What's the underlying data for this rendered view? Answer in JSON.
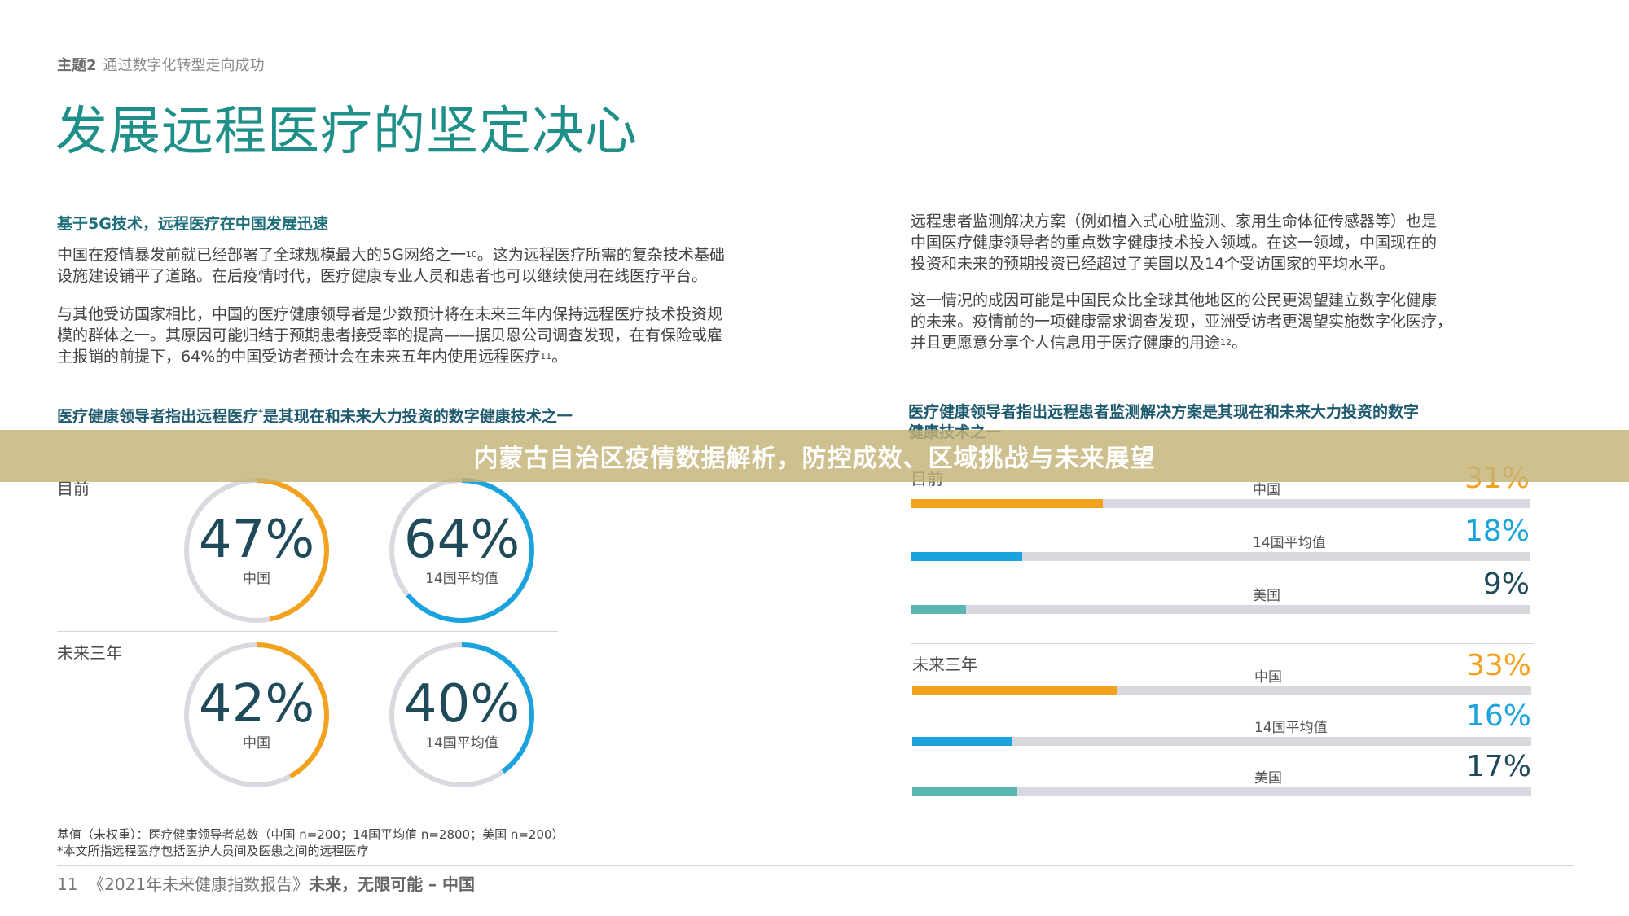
{
  "header": {
    "topic_label": "主题2",
    "topic_text": "通过数字化转型走向成功",
    "title": "发展远程医疗的坚定决心"
  },
  "left_text": {
    "heading": "基于5G技术，远程医疗在中国发展迅速",
    "p1_line1": "中国在疫情暴发前就已经部署了全球规模最大的5G网络之一",
    "p1_ref": "10",
    "p1_line1b": "。这为远程医疗所需的复杂技术基础",
    "p1_line2": "设施建设铺平了道路。在后疫情时代，医疗健康专业人员和患者也可以继续使用在线医疗平台。",
    "p2_line1": "与其他受访国家相比，中国的医疗健康领导者是少数预计将在未来三年内保持远程医疗技术投资规",
    "p2_line2": "模的群体之一。其原因可能归结于预期患者接受率的提高——据贝恩公司调查发现，在有保险或雇",
    "p2_line3": "主报销的前提下，64%的中国受访者预计会在未来五年内使用远程医疗",
    "p2_ref": "11",
    "p2_end": "。"
  },
  "right_text": {
    "p1_line1": "远程患者监测解决方案（例如植入式心脏监测、家用生命体征传感器等）也是",
    "p1_line2": "中国医疗健康领导者的重点数字健康技术投入领域。在这一领域，中国现在的",
    "p1_line3": "投资和未来的预期投资已经超过了美国以及14个受访国家的平均水平。",
    "p2_line1": "这一情况的成因可能是中国民众比全球其他地区的公民更渴望建立数字化健康",
    "p2_line2": "的未来。疫情前的一项健康需求调查发现，亚洲受访者更渴望实施数字化医疗，",
    "p2_line3": "并且更愿意分享个人信息用于医疗健康的用途",
    "p2_ref": "12",
    "p2_end": "。"
  },
  "left_chart": {
    "heading": "医疗健康领导者指出远程医疗",
    "heading_mark": "*",
    "heading_rest": "是其现在和未来大力投资的数字健康技术之一",
    "row_now": "目前",
    "row_future": "未来三年",
    "rings": [
      {
        "pct_text": "47%",
        "value": 47,
        "label": "中国",
        "color": "#f2a21f"
      },
      {
        "pct_text": "64%",
        "value": 64,
        "label": "14国平均值",
        "color": "#1aa3dd"
      },
      {
        "pct_text": "42%",
        "value": 42,
        "label": "中国",
        "color": "#f2a21f"
      },
      {
        "pct_text": "40%",
        "value": 40,
        "label": "14国平均值",
        "color": "#1aa3dd"
      }
    ]
  },
  "right_chart": {
    "heading_line1": "医疗健康领导者指出远程患者监测解决方案是其现在和未来大力投资的数字",
    "heading_line2": "健康技术之一",
    "row_now": "目前",
    "row_future": "未来三年",
    "bars_now": [
      {
        "label": "中国",
        "pct_text": "31%",
        "value": 31,
        "color": "#f2a21f"
      },
      {
        "label": "14国平均值",
        "pct_text": "18%",
        "value": 18,
        "color": "#1aa3dd"
      },
      {
        "label": "美国",
        "pct_text": "9%",
        "value": 9,
        "color": "#5bb5b0"
      }
    ],
    "bars_future": [
      {
        "label": "中国",
        "pct_text": "33%",
        "value": 33,
        "color": "#f2a21f"
      },
      {
        "label": "14国平均值",
        "pct_text": "16%",
        "value": 16,
        "color": "#1aa3dd"
      },
      {
        "label": "美国",
        "pct_text": "17%",
        "value": 17,
        "color": "#5bb5b0"
      }
    ],
    "value_text_colors": {
      "china": "#f2a21f",
      "avg": "#1aa3dd",
      "us": "#1e4a5a"
    }
  },
  "footer": {
    "note1": "基值（未权重）：医疗健康领导者总数（中国 n=200；14国平均值 n=2800；美国 n=200）",
    "note2": "*本文所指远程医疗包括医护人员间及医患之间的远程医疗",
    "page_num": "11",
    "report_title": "《2021年未来健康指数报告》",
    "report_sub": "未来，无限可能 – 中国"
  },
  "banner": {
    "text": "内蒙古自治区疫情数据解析，防控成效、区域挑战与未来展望"
  }
}
